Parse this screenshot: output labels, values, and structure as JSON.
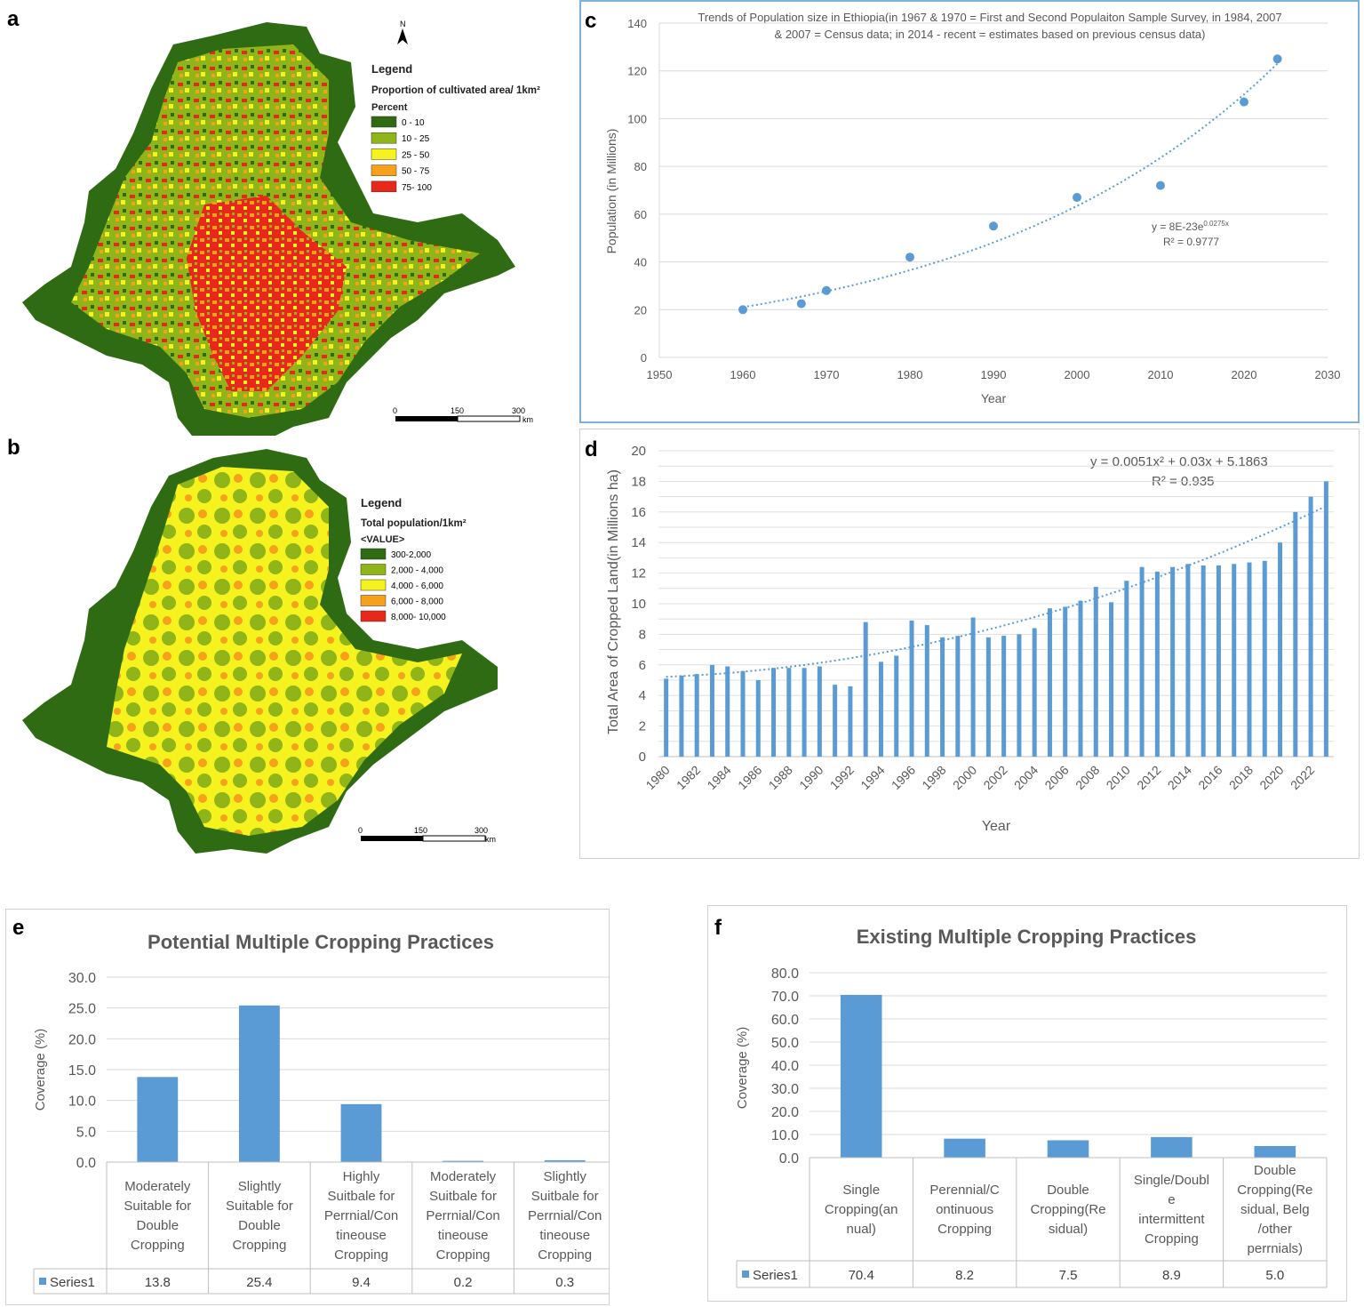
{
  "panels": {
    "a": "a",
    "b": "b",
    "c": "c",
    "d": "d",
    "e": "e",
    "f": "f"
  },
  "colors": {
    "map_c0": "#2e6b12",
    "map_c1": "#8fb519",
    "map_c2": "#f5f21e",
    "map_c3": "#f7a11a",
    "map_c4": "#e8281a",
    "bar": "#5b9bd5",
    "trend": "#5b9bd5",
    "grid": "#d9d9d9",
    "axis_text": "#595959"
  },
  "map_a": {
    "north": "N",
    "legend_title": "Legend",
    "legend_subtitle": "Proportion of cultivated area/ 1km²",
    "legend_unit": "Percent",
    "classes": [
      "0 - 10",
      "10 - 25",
      "25 - 50",
      "50 - 75",
      "75- 100"
    ],
    "scale": [
      "0",
      "150",
      "300"
    ],
    "scale_unit": "km"
  },
  "map_b": {
    "legend_title": "Legend",
    "legend_subtitle": "Total population/1km²",
    "legend_unit": "<VALUE>",
    "classes": [
      "300-2,000",
      "2,000 - 4,000",
      "4,000 - 6,000",
      "6,000 - 8,000",
      "8,000- 10,000"
    ],
    "scale": [
      "0",
      "150",
      "300"
    ],
    "scale_unit": "km"
  },
  "chart_data": [
    {
      "id": "c",
      "type": "scatter",
      "title": "Trends of Population size in Ethiopia(in 1967 & 1970 = First and Second Populaiton Sample Survey, in 1984, 2007",
      "title_line2": "& 2007 =  Census data; in 2014 - recent  = estimates based on previous census data)",
      "xlabel": "Year",
      "ylabel": "Population (in Millions)",
      "xlim": [
        1950,
        2030
      ],
      "ylim": [
        0,
        140
      ],
      "xticks": [
        1950,
        1960,
        1970,
        1980,
        1990,
        2000,
        2010,
        2020,
        2030
      ],
      "yticks": [
        0,
        20,
        40,
        60,
        80,
        100,
        120,
        140
      ],
      "x": [
        1960,
        1967,
        1970,
        1980,
        1990,
        2000,
        2010,
        2020,
        2024
      ],
      "y": [
        20,
        22.5,
        28,
        42,
        55,
        67,
        72,
        107,
        125
      ],
      "trendline": "exponential",
      "equation": "y = 8E-23e",
      "equation_exp": "0.0275x",
      "r2": "R² = 0.9777",
      "grid": true
    },
    {
      "id": "d",
      "type": "bar",
      "xlabel": "Year",
      "ylabel": "Total Area of Cropped Land(in Millions ha)",
      "ylim": [
        0,
        20
      ],
      "yticks": [
        0,
        2,
        4,
        6,
        8,
        10,
        12,
        14,
        16,
        18,
        20
      ],
      "categories": [
        1980,
        1981,
        1982,
        1983,
        1984,
        1985,
        1986,
        1987,
        1988,
        1989,
        1990,
        1991,
        1992,
        1993,
        1994,
        1995,
        1996,
        1997,
        1998,
        1999,
        2000,
        2001,
        2002,
        2003,
        2004,
        2005,
        2006,
        2007,
        2008,
        2009,
        2010,
        2011,
        2012,
        2013,
        2014,
        2015,
        2016,
        2017,
        2018,
        2019,
        2020,
        2021,
        2022,
        2023
      ],
      "tick_labels": [
        "1980",
        "1982",
        "1984",
        "1986",
        "1988",
        "1990",
        "1992",
        "1994",
        "1996",
        "1998",
        "2000",
        "2002",
        "2004",
        "2006",
        "2008",
        "2010",
        "2012",
        "2014",
        "2016",
        "2018",
        "2020",
        "2022"
      ],
      "values": [
        5.1,
        5.3,
        5.4,
        6.0,
        5.9,
        5.6,
        5.0,
        5.8,
        5.8,
        5.8,
        5.9,
        4.7,
        4.6,
        8.8,
        6.2,
        6.6,
        8.9,
        8.6,
        7.8,
        7.9,
        9.1,
        7.8,
        7.9,
        8.0,
        8.4,
        9.7,
        9.8,
        10.2,
        11.1,
        10.1,
        11.5,
        12.4,
        12.1,
        12.4,
        12.6,
        12.5,
        12.5,
        12.6,
        12.7,
        12.8,
        14.0,
        16.0,
        17.0,
        18.0
      ],
      "trendline": "polynomial",
      "equation": "y = 0.0051x² + 0.03x + 5.1863",
      "r2": "R² = 0.935",
      "grid": true
    },
    {
      "id": "e",
      "type": "bar",
      "title": "Potential Multiple Cropping Practices",
      "ylabel": "Coverage (%)",
      "ylim": [
        0,
        30
      ],
      "yticks": [
        "0.0",
        "5.0",
        "10.0",
        "15.0",
        "20.0",
        "25.0",
        "30.0"
      ],
      "categories": [
        [
          "Moderately",
          "Suitable for",
          "Double",
          "Cropping"
        ],
        [
          "Slightly",
          "Suitable for",
          "Double",
          "Cropping"
        ],
        [
          "Highly",
          "Suitbale for",
          "Perrnial/Con",
          "tineouse",
          "Cropping"
        ],
        [
          "Moderately",
          "Suitbale for",
          "Perrnial/Con",
          "tineouse",
          "Cropping"
        ],
        [
          "Slightly",
          "Suitbale for",
          "Perrnial/Con",
          "tineouse",
          "Cropping"
        ]
      ],
      "series": [
        {
          "name": "Series1",
          "values": [
            13.8,
            25.4,
            9.4,
            0.2,
            0.3
          ],
          "labels": [
            "13.8",
            "25.4",
            "9.4",
            "0.2",
            "0.3"
          ]
        }
      ],
      "grid": true
    },
    {
      "id": "f",
      "type": "bar",
      "title": "Existing Multiple Cropping Practices",
      "ylabel": "Coverage (%)",
      "ylim": [
        0,
        80
      ],
      "yticks": [
        "0.0",
        "10.0",
        "20.0",
        "30.0",
        "40.0",
        "50.0",
        "60.0",
        "70.0",
        "80.0"
      ],
      "categories": [
        [
          "Single",
          "Cropping(an",
          "nual)"
        ],
        [
          "Perennial/C",
          "ontinuous",
          "Cropping"
        ],
        [
          "Double",
          "Cropping(Re",
          "sidual)"
        ],
        [
          "Single/Doubl",
          "e",
          "intermittent",
          "Cropping"
        ],
        [
          "Double",
          "Cropping(Re",
          "sidual, Belg",
          "/other",
          "perrnials)"
        ]
      ],
      "series": [
        {
          "name": "Series1",
          "values": [
            70.4,
            8.2,
            7.5,
            8.9,
            5.0
          ],
          "labels": [
            "70.4",
            "8.2",
            "7.5",
            "8.9",
            "5.0"
          ]
        }
      ],
      "grid": true
    }
  ]
}
